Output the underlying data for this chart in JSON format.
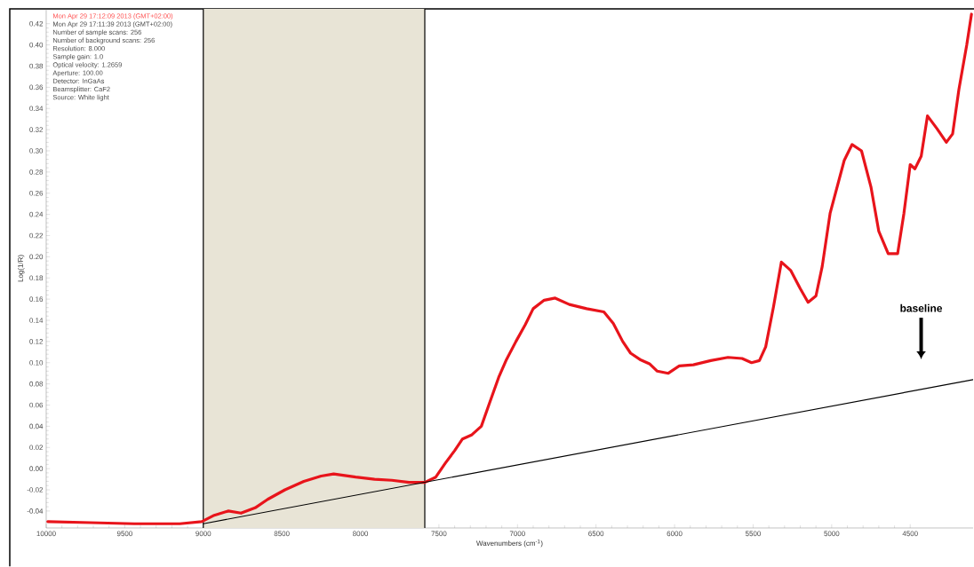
{
  "chart_data": {
    "type": "line",
    "xlabel": "Wavenumbers (cm$^{-1}$)",
    "ylabel": "Log(1/R)",
    "xlim": [
      10000,
      4100
    ],
    "ylim": [
      -0.056,
      0.434
    ],
    "xticks": [
      10000,
      9500,
      9000,
      8500,
      8000,
      7500,
      7000,
      6500,
      6000,
      5500,
      5000,
      4500
    ],
    "yticks": [
      {
        "value": -0.04,
        "label": "-0.04"
      },
      {
        "value": -0.02,
        "label": "-0.02"
      },
      {
        "value": 0,
        "label": "0.00"
      },
      {
        "value": 0.02,
        "label": "0.02"
      },
      {
        "value": 0.04,
        "label": "0.04"
      },
      {
        "value": 0.06,
        "label": "0.06"
      },
      {
        "value": 0.08,
        "label": "0.08"
      },
      {
        "value": 0.1,
        "label": "0.10"
      },
      {
        "value": 0.12,
        "label": "0.12"
      },
      {
        "value": 0.14,
        "label": "0.14"
      },
      {
        "value": 0.16,
        "label": "0.16"
      },
      {
        "value": 0.18,
        "label": "0.18"
      },
      {
        "value": 0.2,
        "label": "0.20"
      },
      {
        "value": 0.22,
        "label": "0.22"
      },
      {
        "value": 0.24,
        "label": "0.24"
      },
      {
        "value": 0.26,
        "label": "0.26"
      },
      {
        "value": 0.28,
        "label": "0.28"
      },
      {
        "value": 0.3,
        "label": "0.30"
      },
      {
        "value": 0.32,
        "label": "0.32"
      },
      {
        "value": 0.34,
        "label": "0.34"
      },
      {
        "value": 0.36,
        "label": "0.36"
      },
      {
        "value": 0.38,
        "label": "0.38"
      },
      {
        "value": 0.4,
        "label": "0.40"
      },
      {
        "value": 0.42,
        "label": "0.42"
      }
    ],
    "series": [
      {
        "color": "#e8141b",
        "x": [
          9990,
          9720,
          9440,
          9150,
          9010,
          8930,
          8840,
          8760,
          8670,
          8590,
          8480,
          8360,
          8250,
          8170,
          8030,
          7910,
          7800,
          7690,
          7590,
          7520,
          7460,
          7400,
          7350,
          7290,
          7230,
          7180,
          7120,
          7070,
          7010,
          6950,
          6900,
          6830,
          6760,
          6670,
          6560,
          6450,
          6390,
          6330,
          6280,
          6220,
          6160,
          6110,
          6040,
          5970,
          5880,
          5770,
          5660,
          5570,
          5510,
          5460,
          5420,
          5370,
          5320,
          5260,
          5200,
          5150,
          5100,
          5060,
          5010,
          4920,
          4870,
          4810,
          4750,
          4700,
          4640,
          4580,
          4540,
          4500,
          4470,
          4430,
          4390,
          4330,
          4270,
          4230,
          4190,
          4140,
          4110
        ],
        "values": [
          -0.05,
          -0.051,
          -0.052,
          -0.052,
          -0.05,
          -0.044,
          -0.04,
          -0.042,
          -0.037,
          -0.029,
          -0.02,
          -0.012,
          -0.007,
          -0.005,
          -0.008,
          -0.01,
          -0.011,
          -0.013,
          -0.013,
          -0.008,
          0.005,
          0.017,
          0.028,
          0.032,
          0.04,
          0.061,
          0.086,
          0.103,
          0.12,
          0.136,
          0.151,
          0.159,
          0.161,
          0.155,
          0.151,
          0.148,
          0.137,
          0.12,
          0.109,
          0.103,
          0.099,
          0.092,
          0.09,
          0.097,
          0.098,
          0.102,
          0.105,
          0.104,
          0.1,
          0.102,
          0.115,
          0.153,
          0.195,
          0.187,
          0.17,
          0.157,
          0.163,
          0.191,
          0.241,
          0.291,
          0.306,
          0.3,
          0.266,
          0.224,
          0.203,
          0.203,
          0.241,
          0.287,
          0.283,
          0.295,
          0.333,
          0.321,
          0.308,
          0.316,
          0.358,
          0.4,
          0.429
        ]
      },
      {
        "type": "line",
        "color": "#000000",
        "x": [
          9000,
          4100
        ],
        "values": [
          -0.052,
          0.084
        ]
      }
    ],
    "bands": [
      {
        "axis": "x",
        "from": 9000,
        "to": 7590,
        "color": "#e8e4d6"
      }
    ],
    "annotations": [
      "Mon Apr 29 17:12:09 2013 (GMT+02:00)",
      "Mon Apr 29 17:11:39 2013 (GMT+02:00)",
      "Number of sample scans: 256",
      "Number of background scans: 256",
      "Resolution: 8.000",
      "Sample gain: 1.0",
      "Optical velocity: 1.2659",
      "Aperture: 100.00",
      "Detector: InGaAs",
      "Beamsplitter: CaF2",
      "Source: White light",
      "baseline"
    ]
  }
}
